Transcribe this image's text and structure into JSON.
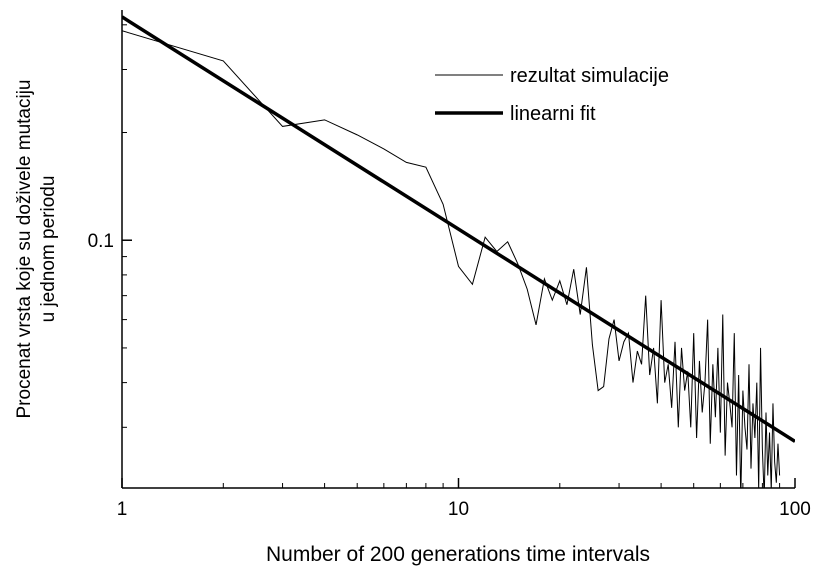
{
  "chart_data": {
    "type": "line",
    "xlabel": "Number of 200 generations time intervals",
    "ylabel": [
      "Procenat vrsta koje su doživele mutaciju",
      "u jednom periodu"
    ],
    "xscale": "log",
    "yscale": "log",
    "xlim": [
      1,
      100
    ],
    "ylim": [
      0.0203,
      0.44
    ],
    "xticks": [
      1,
      10,
      100
    ],
    "xminorticks": [
      2,
      3,
      4,
      5,
      6,
      7,
      8,
      9,
      20,
      30,
      40,
      50,
      60,
      70,
      80,
      90
    ],
    "yticks": [
      0.1
    ],
    "yminorticks": [
      0.03,
      0.04,
      0.05,
      0.06,
      0.07,
      0.08,
      0.09,
      0.2,
      0.3,
      0.4
    ],
    "legend": "upper right",
    "series": [
      {
        "name": "rezultat simulacije",
        "color": "#000000",
        "line_width": 1,
        "x": [
          1,
          2,
          3,
          4,
          5,
          6,
          7,
          8,
          9,
          10,
          11,
          12,
          13,
          14,
          15,
          16,
          17,
          18,
          19,
          20,
          21,
          22,
          23,
          24,
          25,
          26,
          27,
          28,
          29,
          30,
          31,
          32,
          33,
          34,
          35,
          36,
          37,
          38,
          39,
          40,
          41,
          42,
          43,
          44,
          45,
          46,
          47,
          48,
          49,
          50,
          51,
          52,
          53,
          54,
          55,
          56,
          57,
          58,
          59,
          60,
          61,
          62,
          63,
          64,
          65,
          66,
          67,
          68,
          69,
          70,
          71,
          72,
          73,
          74,
          75,
          76,
          77,
          78,
          79,
          80,
          81,
          82,
          83,
          84,
          85,
          86,
          87,
          88,
          89,
          90
        ],
        "values": [
          0.385,
          0.317,
          0.208,
          0.217,
          0.197,
          0.18,
          0.165,
          0.16,
          0.126,
          0.0845,
          0.0753,
          0.102,
          0.093,
          0.099,
          0.086,
          0.073,
          0.058,
          0.078,
          0.068,
          0.077,
          0.066,
          0.083,
          0.062,
          0.084,
          0.051,
          0.038,
          0.039,
          0.053,
          0.06,
          0.046,
          0.052,
          0.055,
          0.04,
          0.049,
          0.045,
          0.07,
          0.042,
          0.05,
          0.035,
          0.068,
          0.04,
          0.045,
          0.034,
          0.052,
          0.03,
          0.05,
          0.038,
          0.043,
          0.03,
          0.055,
          0.028,
          0.046,
          0.033,
          0.04,
          0.06,
          0.027,
          0.045,
          0.032,
          0.05,
          0.029,
          0.062,
          0.025,
          0.04,
          0.035,
          0.03,
          0.055,
          0.022,
          0.042,
          0.019,
          0.038,
          0.03,
          0.026,
          0.045,
          0.023,
          0.035,
          0.028,
          0.04,
          0.02,
          0.05,
          0.026,
          0.019,
          0.033,
          0.022,
          0.029,
          0.02,
          0.035,
          0.024,
          0.021,
          0.027,
          0.022
        ]
      },
      {
        "name": "linearni fit",
        "color": "#000000",
        "line_width": 3.5,
        "x": [
          1,
          100
        ],
        "values": [
          0.421,
          0.0274
        ]
      }
    ]
  }
}
